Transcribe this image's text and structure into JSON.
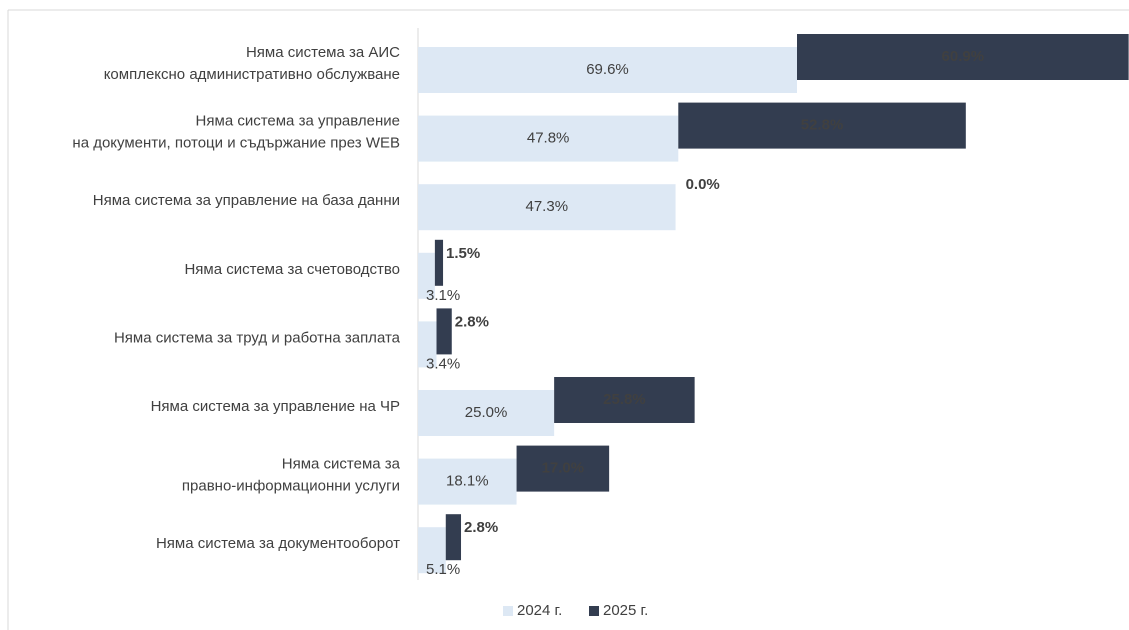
{
  "chart_data": {
    "type": "bar",
    "categories": [
      "Няма система за АИС\nкомплексно административно обслужване",
      "Няма система за управление\nна документи, потоци и съдържание през WEB",
      "Няма система за управление на база данни",
      "Няма система за счетоводство",
      "Няма система за труд и работна заплата",
      "Няма система за управление на ЧР",
      "Няма система за\nправно-информационни услуги",
      "Няма система за документооборот"
    ],
    "series": [
      {
        "name": "2024 г.",
        "color": "#dde8f4",
        "values": [
          69.6,
          47.8,
          47.3,
          3.1,
          3.4,
          25.0,
          18.1,
          5.1
        ],
        "value_labels": [
          "69.6%",
          "47.8%",
          "47.3%",
          "3.1%",
          "3.4%",
          "25.0%",
          "18.1%",
          "5.1%"
        ]
      },
      {
        "name": "2025 г.",
        "color": "#333d50",
        "values": [
          60.9,
          52.8,
          0.0,
          1.5,
          2.8,
          25.8,
          17.0,
          2.8
        ],
        "value_labels": [
          "60.9%",
          "52.8%",
          "0.0%",
          "1.5%",
          "2.8%",
          "25.8%",
          "17.0%",
          "2.8%"
        ]
      }
    ],
    "xlim": [
      0,
      130.2
    ]
  }
}
